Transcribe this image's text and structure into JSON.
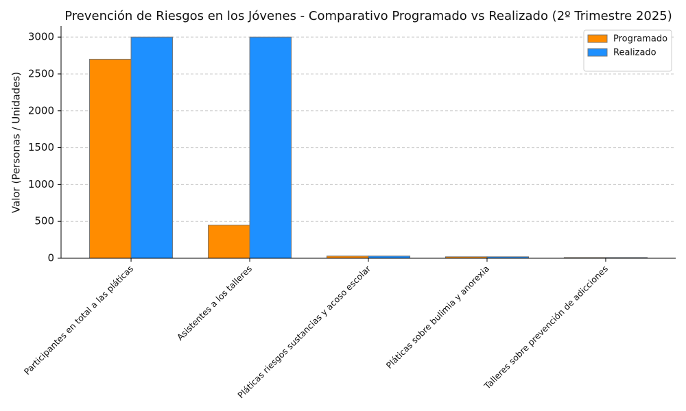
{
  "chart_data": {
    "type": "bar",
    "title": "Prevención de Riesgos en los Jóvenes - Comparativo Programado vs Realizado (2º Trimestre 2025)",
    "y_label": "Valor (Personas / Unidades)",
    "categories": [
      "Participantes en total a las pláticas",
      "Asistentes a los talleres",
      "Pláticas riesgos sustancias y acoso escolar",
      "Pláticas sobre bulimia y anorexia",
      "Talleres sobre prevención de adicciones"
    ],
    "series": [
      {
        "name": "Programado",
        "color": "#ff8c00",
        "values": [
          2700,
          450,
          30,
          20,
          10
        ]
      },
      {
        "name": "Realizado",
        "color": "#1e90ff",
        "values": [
          3000,
          3000,
          30,
          20,
          10
        ]
      }
    ],
    "ylim": [
      0,
      3150
    ],
    "yticks": [
      0,
      500,
      1000,
      1500,
      2000,
      2500,
      3000
    ],
    "grid": true,
    "legend": "upper right"
  }
}
